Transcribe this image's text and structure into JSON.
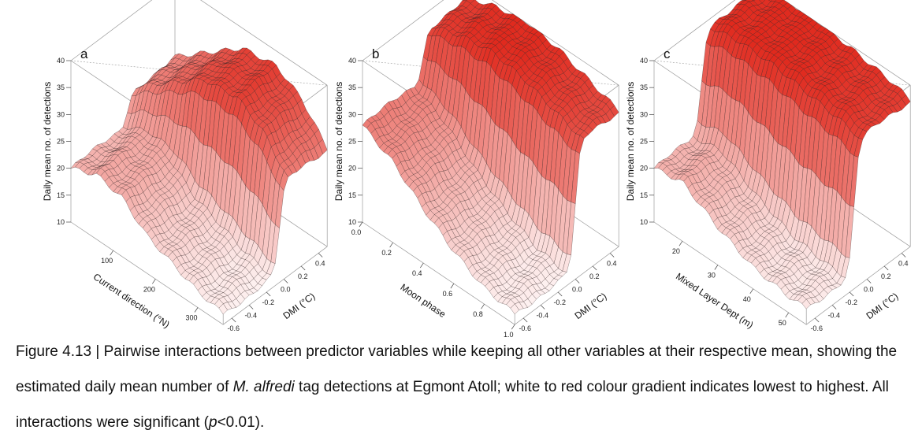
{
  "figure": {
    "caption": {
      "prefix": "Figure 4.13 | Pairwise interactions between predictor variables while keeping all other variables at their respective mean, showing the estimated daily mean number of ",
      "species": "M. alfredi",
      "middle": " tag detections at Egmont Atoll; white to red colour gradient indicates lowest to highest. All interactions were significant (",
      "p_symbol": "p",
      "suffix": "<0.01)."
    }
  },
  "colors": {
    "low": "#ffffff",
    "high": "#e0291d",
    "mesh": "#2a1a1a",
    "box": "#9a9a9a"
  },
  "chart_data": [
    {
      "type": "surface",
      "panel_label": "a",
      "zlabel": "Daily mean no. of detections",
      "xlabel": "Current direction (°N)",
      "ylabel": "DMI (°C)",
      "zlim": [
        10,
        40
      ],
      "z_ticks": [
        10,
        15,
        20,
        25,
        30,
        35,
        40
      ],
      "x_range": [
        0,
        360
      ],
      "x_ticks": [
        100,
        200,
        300
      ],
      "y_range": [
        -0.7,
        0.5
      ],
      "y_ticks": [
        -0.6,
        -0.4,
        -0.2,
        0.0,
        0.2,
        0.4
      ],
      "low_dmi_profile": [
        {
          "x": 0,
          "z": 20
        },
        {
          "x": 60,
          "z": 22
        },
        {
          "x": 120,
          "z": 21
        },
        {
          "x": 180,
          "z": 17
        },
        {
          "x": 240,
          "z": 15
        },
        {
          "x": 300,
          "z": 13
        },
        {
          "x": 360,
          "z": 12
        }
      ],
      "high_dmi_profile": [
        {
          "x": 0,
          "z": 26
        },
        {
          "x": 80,
          "z": 31
        },
        {
          "x": 160,
          "z": 36
        },
        {
          "x": 240,
          "z": 37
        },
        {
          "x": 300,
          "z": 34
        },
        {
          "x": 360,
          "z": 28
        }
      ],
      "dmi_threshold": -0.05
    },
    {
      "type": "surface",
      "panel_label": "b",
      "zlabel": "Daily mean no. of detections",
      "xlabel": "Moon phase",
      "ylabel": "DMI (°C)",
      "zlim": [
        10,
        40
      ],
      "z_ticks": [
        10,
        15,
        20,
        25,
        30,
        35,
        40
      ],
      "x_range": [
        0,
        1
      ],
      "x_ticks": [
        0.0,
        0.2,
        0.4,
        0.6,
        0.8,
        1.0
      ],
      "y_range": [
        -0.7,
        0.5
      ],
      "y_ticks": [
        -0.6,
        -0.4,
        -0.2,
        0.0,
        0.2,
        0.4
      ],
      "low_dmi_profile": [
        {
          "x": 0.0,
          "z": 28
        },
        {
          "x": 0.2,
          "z": 25
        },
        {
          "x": 0.4,
          "z": 20
        },
        {
          "x": 0.6,
          "z": 16
        },
        {
          "x": 0.8,
          "z": 13
        },
        {
          "x": 1.0,
          "z": 12
        }
      ],
      "high_dmi_profile": [
        {
          "x": 0.0,
          "z": 37
        },
        {
          "x": 0.2,
          "z": 39
        },
        {
          "x": 0.4,
          "z": 40
        },
        {
          "x": 0.6,
          "z": 39
        },
        {
          "x": 0.8,
          "z": 37
        },
        {
          "x": 1.0,
          "z": 35
        }
      ],
      "dmi_threshold": 0.0
    },
    {
      "type": "surface",
      "panel_label": "c",
      "zlabel": "Daily mean no. of detections",
      "xlabel": "Mixed Layer Dept (m)",
      "ylabel": "DMI (°C)",
      "zlim": [
        10,
        40
      ],
      "z_ticks": [
        10,
        15,
        20,
        25,
        30,
        35,
        40
      ],
      "x_range": [
        12,
        55
      ],
      "x_ticks": [
        20,
        30,
        40,
        50
      ],
      "y_range": [
        -0.7,
        0.5
      ],
      "y_ticks": [
        -0.6,
        -0.4,
        -0.2,
        0.0,
        0.2,
        0.4
      ],
      "low_dmi_profile": [
        {
          "x": 12,
          "z": 20
        },
        {
          "x": 20,
          "z": 21
        },
        {
          "x": 30,
          "z": 17
        },
        {
          "x": 40,
          "z": 14
        },
        {
          "x": 50,
          "z": 13
        },
        {
          "x": 55,
          "z": 13
        }
      ],
      "high_dmi_profile": [
        {
          "x": 12,
          "z": 39
        },
        {
          "x": 20,
          "z": 40
        },
        {
          "x": 30,
          "z": 40
        },
        {
          "x": 40,
          "z": 39
        },
        {
          "x": 50,
          "z": 38
        },
        {
          "x": 55,
          "z": 37
        }
      ],
      "dmi_threshold": -0.15
    }
  ]
}
